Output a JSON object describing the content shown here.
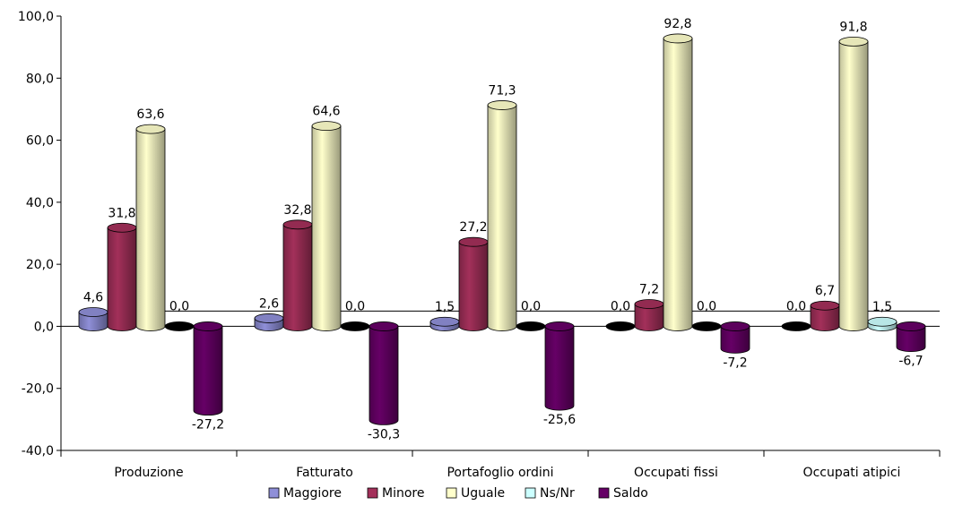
{
  "chart_data": {
    "type": "bar",
    "style": "3d-cylinder",
    "categories": [
      "Produzione",
      "Fatturato",
      "Portafoglio ordini",
      "Occupati fissi",
      "Occupati atipici"
    ],
    "series": [
      {
        "name": "Maggiore",
        "color": "#8f8fd8",
        "values": [
          4.6,
          2.6,
          1.5,
          0.0,
          0.0
        ]
      },
      {
        "name": "Minore",
        "color": "#a3305a",
        "values": [
          31.8,
          32.8,
          27.2,
          7.2,
          6.7
        ]
      },
      {
        "name": "Uguale",
        "color": "#ffffcc",
        "values": [
          63.6,
          64.6,
          71.3,
          92.8,
          91.8
        ]
      },
      {
        "name": "Ns/Nr",
        "color": "#ccffff",
        "values": [
          0.0,
          0.0,
          0.0,
          0.0,
          1.5
        ]
      },
      {
        "name": "Saldo",
        "color": "#660066",
        "values": [
          -27.2,
          -30.3,
          -25.6,
          -7.2,
          -6.7
        ]
      }
    ],
    "data_labels": [
      [
        "4,6",
        "2,6",
        "1,5",
        "0,0",
        "0,0"
      ],
      [
        "31,8",
        "32,8",
        "27,2",
        "7,2",
        "6,7"
      ],
      [
        "63,6",
        "64,6",
        "71,3",
        "92,8",
        "91,8"
      ],
      [
        "0,0",
        "0,0",
        "0,0",
        "0,0",
        "1,5"
      ],
      [
        "-27,2",
        "-30,3",
        "-25,6",
        "-7,2",
        "-6,7"
      ]
    ],
    "ylim": [
      -40,
      100
    ],
    "yticks": [
      -40,
      -20,
      0,
      20,
      40,
      60,
      80,
      100
    ],
    "ytick_labels": [
      "-40,0",
      "-20,0",
      "0,0",
      "20,0",
      "40,0",
      "60,0",
      "80,0",
      "100,0"
    ],
    "grid": false,
    "legend_position": "bottom",
    "title": "",
    "xlabel": "",
    "ylabel": ""
  }
}
